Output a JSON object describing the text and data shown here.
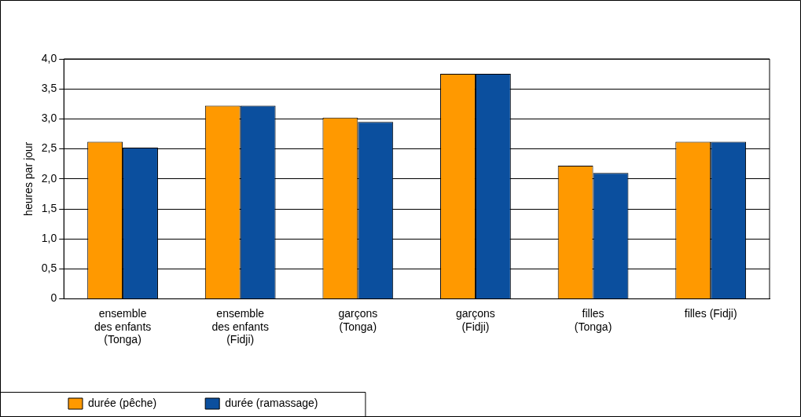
{
  "chart_data": {
    "type": "bar",
    "ylabel": "heures par jour",
    "categories": [
      "ensemble des enfants (Tonga)",
      "ensemble des enfants (Fidji)",
      "garçons (Tonga)",
      "garçons (Fidji)",
      "filles (Tonga)",
      "filles (Fidji)"
    ],
    "series": [
      {
        "name": "durée (pêche)",
        "color": "#ff9900",
        "values": [
          2.62,
          3.22,
          3.02,
          3.75,
          2.22,
          2.62
        ]
      },
      {
        "name": "durée (ramassage)",
        "color": "#0b4f9e",
        "values": [
          2.52,
          3.22,
          2.95,
          3.75,
          2.1,
          2.62
        ]
      }
    ],
    "ylim": [
      0,
      4
    ],
    "yticks": [
      {
        "value": 0,
        "label": "0"
      },
      {
        "value": 0.5,
        "label": "0,5"
      },
      {
        "value": 1,
        "label": "1,0"
      },
      {
        "value": 1.5,
        "label": "1,5"
      },
      {
        "value": 2,
        "label": "2,0"
      },
      {
        "value": 2.5,
        "label": "2,5"
      },
      {
        "value": 3,
        "label": "3,0"
      },
      {
        "value": 3.5,
        "label": "3,5"
      },
      {
        "value": 4,
        "label": "4,0"
      }
    ],
    "grid": "y",
    "legend": "bottom left"
  }
}
